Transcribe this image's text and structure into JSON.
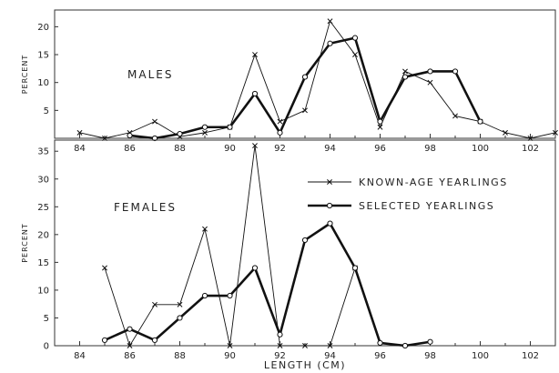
{
  "chart_data": [
    {
      "type": "line",
      "panel_label": "MALES",
      "ylabel": "PERCENT",
      "xlabel": "",
      "xlim": [
        83,
        103
      ],
      "ylim": [
        0,
        23
      ],
      "x_ticks": [
        84,
        86,
        88,
        90,
        92,
        94,
        96,
        98,
        100,
        102
      ],
      "y_ticks": [
        5,
        10,
        15,
        20
      ],
      "series": [
        {
          "name": "KNOWN-AGE YEARLINGS",
          "style": "thin-x",
          "points": [
            [
              84,
              1
            ],
            [
              85,
              0
            ],
            [
              86,
              1
            ],
            [
              87,
              3
            ],
            [
              88,
              0.3
            ],
            [
              89,
              1
            ],
            [
              90,
              2
            ],
            [
              91,
              15
            ],
            [
              92,
              3
            ],
            [
              93,
              5
            ],
            [
              94,
              21
            ],
            [
              95,
              15
            ],
            [
              96,
              2
            ],
            [
              97,
              12
            ],
            [
              98,
              10
            ],
            [
              99,
              4
            ],
            [
              100,
              3
            ],
            [
              101,
              1
            ],
            [
              102,
              0
            ],
            [
              103,
              1
            ]
          ]
        },
        {
          "name": "SELECTED YEARLINGS",
          "style": "thick-o",
          "points": [
            [
              86,
              0.5
            ],
            [
              87,
              0
            ],
            [
              88,
              0.8
            ],
            [
              89,
              2
            ],
            [
              90,
              2
            ],
            [
              91,
              8
            ],
            [
              92,
              1
            ],
            [
              93,
              11
            ],
            [
              94,
              17
            ],
            [
              95,
              18
            ],
            [
              96,
              3
            ],
            [
              97,
              11
            ],
            [
              98,
              12
            ],
            [
              99,
              12
            ],
            [
              100,
              3
            ]
          ]
        }
      ]
    },
    {
      "type": "line",
      "panel_label": "FEMALES",
      "ylabel": "PERCENT",
      "xlabel": "LENGTH (CM)",
      "xlim": [
        83,
        103
      ],
      "ylim": [
        0,
        37
      ],
      "x_ticks": [
        84,
        86,
        88,
        90,
        92,
        94,
        96,
        98,
        100,
        102
      ],
      "y_ticks": [
        0,
        5,
        10,
        15,
        20,
        25,
        30,
        35
      ],
      "legend": [
        {
          "label": "KNOWN-AGE YEARLINGS",
          "style": "thin-x"
        },
        {
          "label": "SELECTED YEARLINGS",
          "style": "thick-o"
        }
      ],
      "legend_position": "top-right",
      "series": [
        {
          "name": "KNOWN-AGE YEARLINGS",
          "style": "thin-x",
          "points": [
            [
              85,
              14
            ],
            [
              86,
              0
            ],
            [
              87,
              7.4
            ],
            [
              88,
              7.4
            ],
            [
              89,
              21
            ],
            [
              90,
              0
            ],
            [
              91,
              36
            ],
            [
              92,
              0
            ],
            [
              93,
              0
            ],
            [
              94,
              0
            ],
            [
              95,
              14
            ]
          ]
        },
        {
          "name": "SELECTED YEARLINGS",
          "style": "thick-o",
          "points": [
            [
              85,
              1
            ],
            [
              86,
              3
            ],
            [
              87,
              1
            ],
            [
              88,
              5
            ],
            [
              89,
              9
            ],
            [
              90,
              9
            ],
            [
              91,
              14
            ],
            [
              92,
              2
            ],
            [
              93,
              19
            ],
            [
              94,
              22
            ],
            [
              95,
              14
            ],
            [
              96,
              0.5
            ],
            [
              97,
              0
            ],
            [
              98,
              0.7
            ]
          ]
        }
      ]
    }
  ]
}
